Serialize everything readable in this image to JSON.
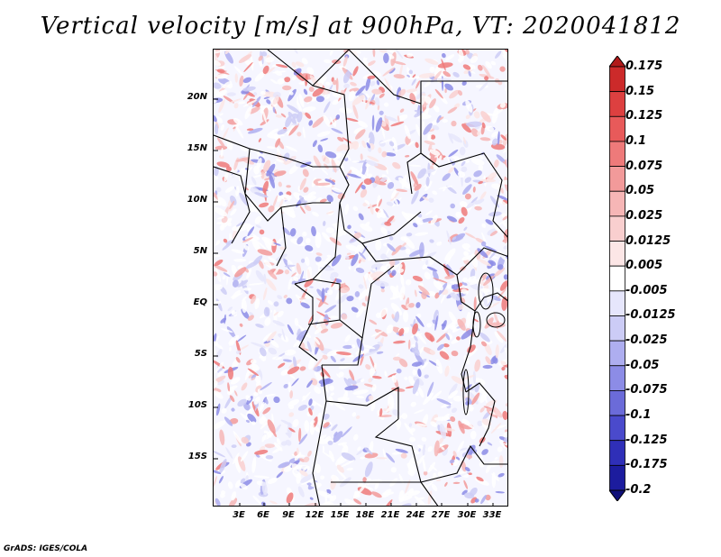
{
  "title": "Vertical velocity [m/s] at 900hPa, VT: 2020041812",
  "credit": "GrADS: IGES/COLA",
  "map": {
    "lat_labels": [
      "20N",
      "15N",
      "10N",
      "5N",
      "EQ",
      "5S",
      "10S",
      "15S"
    ],
    "lon_labels": [
      "3E",
      "6E",
      "9E",
      "12E",
      "15E",
      "18E",
      "21E",
      "24E",
      "27E",
      "30E",
      "33E"
    ],
    "field": "vertical velocity",
    "level": "900hPa",
    "valid_time": "2020041812"
  },
  "colorbar": {
    "labels": [
      "0.175",
      "0.15",
      "0.125",
      "0.1",
      "0.075",
      "0.05",
      "0.025",
      "0.0125",
      "0.005",
      "-0.005",
      "-0.0125",
      "-0.025",
      "-0.05",
      "-0.075",
      "-0.1",
      "-0.125",
      "-0.175",
      "-0.2"
    ],
    "colors": [
      "#b11a1a",
      "#cc2a2a",
      "#dd4040",
      "#e85a5a",
      "#ee7a7a",
      "#f29a9a",
      "#f6b6b6",
      "#f9cfcf",
      "#fce6e6",
      "#ffffff",
      "#e6e6fc",
      "#ccccf6",
      "#aeaef0",
      "#8c8ce6",
      "#6b6bd9",
      "#4a4acc",
      "#2f2fb8",
      "#1c1c9e",
      "#10107a"
    ],
    "arrow_top_color": "#b11a1a",
    "arrow_bottom_color": "#10107a"
  }
}
